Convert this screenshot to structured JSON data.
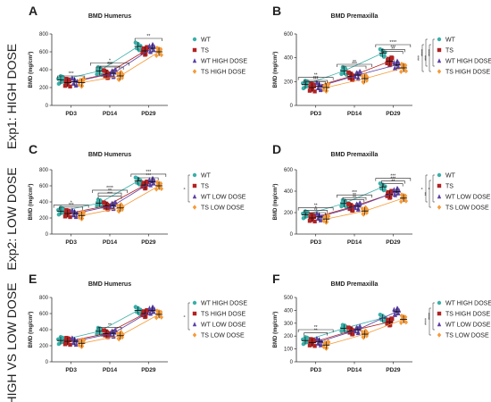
{
  "row_labels": [
    "Exp1: HIGH DOSE",
    "Exp2: LOW DOSE",
    "HIGH VS LOW DOSE"
  ],
  "chart_data": [
    {
      "panel": "A",
      "type": "scatter",
      "title": "BMD Humerus",
      "ylabel": "BMD (mg/cm³)",
      "categories": [
        "PD3",
        "PD14",
        "PD29"
      ],
      "ylim": [
        0,
        800
      ],
      "yticks": [
        0,
        200,
        400,
        600,
        800
      ],
      "series": [
        {
          "name": "WT",
          "color": "#3aafa9",
          "marker": "circle",
          "values": [
            285,
            385,
            660
          ]
        },
        {
          "name": "TS",
          "color": "#b22222",
          "marker": "square",
          "values": [
            255,
            350,
            610
          ]
        },
        {
          "name": "WT HIGH DOSE",
          "color": "#5b3fa6",
          "marker": "triangle",
          "values": [
            265,
            360,
            640
          ]
        },
        {
          "name": "TS HIGH DOSE",
          "color": "#f59a38",
          "marker": "diamond",
          "values": [
            255,
            330,
            600
          ]
        }
      ],
      "annotations": [
        {
          "text": "***",
          "category": 0,
          "y": 330,
          "span": 0.35
        },
        {
          "text": "***",
          "category": 1,
          "y": 430,
          "span": 0.35
        },
        {
          "text": "*",
          "category": 1,
          "y": 475,
          "span": 0.5
        },
        {
          "text": "***",
          "category": 1,
          "y": 440,
          "span": 0.25
        },
        {
          "text": "**",
          "category": 2,
          "y": 750,
          "span": 0.35
        }
      ],
      "legend_position": "right",
      "legend_annotations": []
    },
    {
      "panel": "B",
      "type": "scatter",
      "title": "BMD Premaxilla",
      "ylabel": "BMD (mg/cm³)",
      "categories": [
        "PD3",
        "PD14",
        "PD29"
      ],
      "ylim": [
        0,
        600
      ],
      "yticks": [
        0,
        200,
        400,
        600
      ],
      "series": [
        {
          "name": "WT",
          "color": "#3aafa9",
          "marker": "circle",
          "values": [
            175,
            290,
            440
          ]
        },
        {
          "name": "TS",
          "color": "#b22222",
          "marker": "square",
          "values": [
            150,
            245,
            370
          ]
        },
        {
          "name": "WT HIGH DOSE",
          "color": "#5b3fa6",
          "marker": "triangle",
          "values": [
            160,
            255,
            340
          ]
        },
        {
          "name": "TS HIGH DOSE",
          "color": "#f59a38",
          "marker": "diamond",
          "values": [
            150,
            225,
            315
          ]
        }
      ],
      "annotations": [
        {
          "text": "***",
          "category": 0,
          "y": 210,
          "span": 0.3
        },
        {
          "text": "**",
          "category": 0,
          "y": 235,
          "span": 0.45
        },
        {
          "text": "***",
          "category": 0,
          "y": 200,
          "span": 0.25
        },
        {
          "text": "***",
          "category": 1,
          "y": 330,
          "span": 0.3
        },
        {
          "text": "**",
          "category": 1,
          "y": 345,
          "span": 0.45
        },
        {
          "text": "***",
          "category": 2,
          "y": 470,
          "span": 0.3
        },
        {
          "text": "****",
          "category": 2,
          "y": 510,
          "span": 0.45
        },
        {
          "text": "**",
          "category": 2,
          "y": 455,
          "span": 0.25
        }
      ],
      "legend_position": "right",
      "legend_annotations": [
        "****",
        "***",
        "****",
        "***"
      ]
    },
    {
      "panel": "C",
      "type": "scatter",
      "title": "BMD Humerus",
      "ylabel": "BMD (mg/cm³)",
      "categories": [
        "PD3",
        "PD14",
        "PD29"
      ],
      "ylim": [
        0,
        800
      ],
      "yticks": [
        0,
        200,
        400,
        600,
        800
      ],
      "series": [
        {
          "name": "WT",
          "color": "#3aafa9",
          "marker": "circle",
          "values": [
            285,
            385,
            660
          ]
        },
        {
          "name": "TS",
          "color": "#b22222",
          "marker": "square",
          "values": [
            255,
            350,
            610
          ]
        },
        {
          "name": "WT LOW DOSE",
          "color": "#5b3fa6",
          "marker": "triangle",
          "values": [
            255,
            355,
            650
          ]
        },
        {
          "name": "TS LOW DOSE",
          "color": "#f59a38",
          "marker": "diamond",
          "values": [
            230,
            325,
            600
          ]
        }
      ],
      "annotations": [
        {
          "text": "***",
          "category": 0,
          "y": 335,
          "span": 0.3
        },
        {
          "text": "*",
          "category": 0,
          "y": 360,
          "span": 0.45
        },
        {
          "text": "**",
          "category": 1,
          "y": 510,
          "span": 0.3
        },
        {
          "text": "****",
          "category": 1,
          "y": 545,
          "span": 0.45
        },
        {
          "text": "***",
          "category": 1,
          "y": 470,
          "span": 0.3
        },
        {
          "text": "***",
          "category": 2,
          "y": 745,
          "span": 0.45
        },
        {
          "text": "***",
          "category": 2,
          "y": 700,
          "span": 0.25
        }
      ],
      "legend_position": "right",
      "legend_annotations": [
        "*"
      ]
    },
    {
      "panel": "D",
      "type": "scatter",
      "title": "BMD Premaxilla",
      "ylabel": "BMD (mg/cm³)",
      "categories": [
        "PD3",
        "PD14",
        "PD29"
      ],
      "ylim": [
        0,
        600
      ],
      "yticks": [
        0,
        200,
        400,
        600
      ],
      "series": [
        {
          "name": "WT",
          "color": "#3aafa9",
          "marker": "circle",
          "values": [
            180,
            285,
            440
          ]
        },
        {
          "name": "TS",
          "color": "#b22222",
          "marker": "square",
          "values": [
            150,
            250,
            370
          ]
        },
        {
          "name": "WT LOW DOSE",
          "color": "#5b3fa6",
          "marker": "triangle",
          "values": [
            160,
            260,
            395
          ]
        },
        {
          "name": "TS LOW DOSE",
          "color": "#f59a38",
          "marker": "diamond",
          "values": [
            140,
            215,
            335
          ]
        }
      ],
      "annotations": [
        {
          "text": "*",
          "category": 0,
          "y": 220,
          "span": 0.3
        },
        {
          "text": "**",
          "category": 0,
          "y": 245,
          "span": 0.45
        },
        {
          "text": "**",
          "category": 0,
          "y": 200,
          "span": 0.25
        },
        {
          "text": "**",
          "category": 1,
          "y": 340,
          "span": 0.3
        },
        {
          "text": "***",
          "category": 1,
          "y": 365,
          "span": 0.45
        },
        {
          "text": "**",
          "category": 1,
          "y": 320,
          "span": 0.25
        },
        {
          "text": "***",
          "category": 2,
          "y": 495,
          "span": 0.3
        },
        {
          "text": "***",
          "category": 2,
          "y": 520,
          "span": 0.45
        },
        {
          "text": "**",
          "category": 2,
          "y": 470,
          "span": 0.25
        }
      ],
      "legend_position": "right",
      "legend_annotations": [
        "*",
        "**",
        "*"
      ]
    },
    {
      "panel": "E",
      "type": "scatter",
      "title": "BMD Humerus",
      "ylabel": "BMD (mg/cm³)",
      "categories": [
        "PD3",
        "PD14",
        "PD29"
      ],
      "ylim": [
        0,
        800
      ],
      "yticks": [
        0,
        200,
        400,
        600,
        800
      ],
      "series": [
        {
          "name": "WT HIGH DOSE",
          "color": "#3aafa9",
          "marker": "circle",
          "values": [
            265,
            380,
            640
          ]
        },
        {
          "name": "TS HIGH DOSE",
          "color": "#b22222",
          "marker": "square",
          "values": [
            255,
            350,
            600
          ]
        },
        {
          "name": "WT LOW DOSE",
          "color": "#5b3fa6",
          "marker": "triangle",
          "values": [
            255,
            355,
            640
          ]
        },
        {
          "name": "TS LOW DOSE",
          "color": "#f59a38",
          "marker": "diamond",
          "values": [
            230,
            325,
            590
          ]
        }
      ],
      "annotations": [
        {
          "text": "**",
          "category": 1,
          "y": 430,
          "span": 0.3
        }
      ],
      "legend_position": "right",
      "legend_annotations": [
        "*"
      ]
    },
    {
      "panel": "F",
      "type": "scatter",
      "title": "BMD Premaxilla",
      "ylabel": "BMD (mg/cm³)",
      "categories": [
        "PD3",
        "PD14",
        "PD29"
      ],
      "ylim": [
        0,
        500
      ],
      "yticks": [
        0,
        100,
        200,
        300,
        400,
        500
      ],
      "series": [
        {
          "name": "WT HIGH DOSE",
          "color": "#3aafa9",
          "marker": "circle",
          "values": [
            165,
            260,
            340
          ]
        },
        {
          "name": "TS HIGH DOSE",
          "color": "#b22222",
          "marker": "square",
          "values": [
            150,
            240,
            310
          ]
        },
        {
          "name": "WT LOW DOSE",
          "color": "#5b3fa6",
          "marker": "triangle",
          "values": [
            155,
            250,
            390
          ]
        },
        {
          "name": "TS LOW DOSE",
          "color": "#f59a38",
          "marker": "diamond",
          "values": [
            130,
            215,
            330
          ]
        }
      ],
      "annotations": [
        {
          "text": "**",
          "category": 0,
          "y": 225,
          "span": 0.3
        },
        {
          "text": "**",
          "category": 0,
          "y": 250,
          "span": 0.45
        }
      ],
      "legend_position": "right",
      "legend_annotations": [
        "****",
        "****"
      ]
    }
  ]
}
